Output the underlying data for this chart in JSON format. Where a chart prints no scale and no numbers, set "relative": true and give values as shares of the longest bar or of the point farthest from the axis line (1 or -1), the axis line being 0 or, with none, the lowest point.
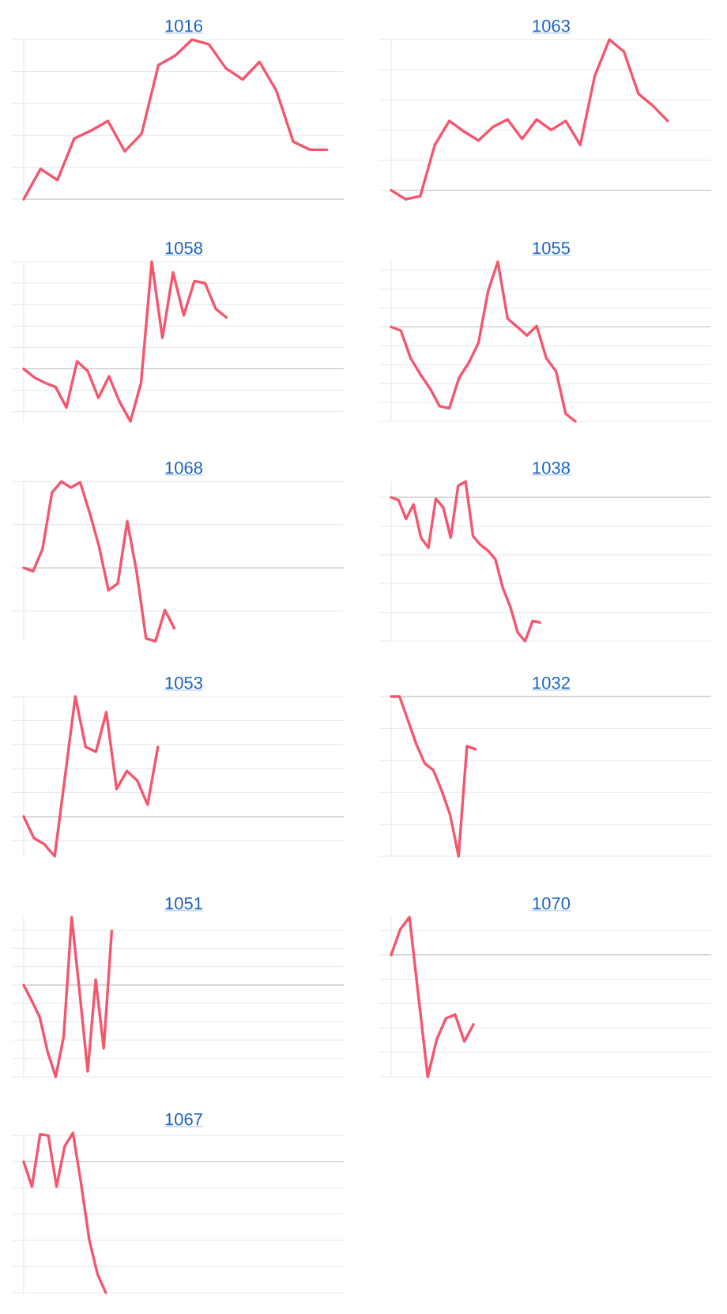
{
  "chart_data": [
    {
      "type": "line",
      "title": "1016",
      "relative": true,
      "grid": "y",
      "color": "#f4566e",
      "categories": [
        null,
        null,
        null,
        null,
        null,
        null,
        null,
        null,
        null,
        null,
        null,
        null,
        null,
        null,
        null,
        null,
        null,
        null,
        null,
        null
      ],
      "values": [
        0,
        0.19,
        0.12,
        0.38,
        0.43,
        0.49,
        0.3,
        0.41,
        0.84,
        0.9,
        1,
        0.97,
        0.82,
        0.75,
        0.86,
        0.68,
        0.36,
        0.31,
        0.31,
        null
      ]
    },
    {
      "type": "line",
      "title": "1063",
      "relative": true,
      "grid": "y",
      "color": "#f4566e",
      "categories": [
        null,
        null,
        null,
        null,
        null,
        null,
        null,
        null,
        null,
        null,
        null,
        null,
        null,
        null,
        null,
        null,
        null,
        null,
        null,
        null,
        null,
        null,
        null
      ],
      "values": [
        0,
        -0.06,
        -0.04,
        0.3,
        0.46,
        0.39,
        0.33,
        0.42,
        0.47,
        0.34,
        0.47,
        0.4,
        0.46,
        0.3,
        0.76,
        1,
        0.92,
        0.64,
        0.56,
        0.46,
        null,
        null,
        null
      ]
    },
    {
      "type": "line",
      "title": "1058",
      "relative": true,
      "grid": "y",
      "color": "#f4566e",
      "categories": [
        null,
        null,
        null,
        null,
        null,
        null,
        null,
        null,
        null,
        null,
        null,
        null,
        null,
        null,
        null,
        null,
        null,
        null,
        null,
        null,
        null,
        null,
        null,
        null,
        null,
        null,
        null,
        null,
        null,
        null,
        null
      ],
      "values": [
        0,
        -0.08,
        -0.13,
        -0.17,
        -0.36,
        0.07,
        -0.02,
        -0.27,
        -0.07,
        -0.31,
        -0.49,
        -0.13,
        1,
        0.29,
        0.9,
        0.5,
        0.82,
        0.8,
        0.56,
        0.48,
        null,
        null,
        null,
        null,
        null,
        null,
        null,
        null,
        null,
        null,
        null
      ]
    },
    {
      "type": "line",
      "title": "1055",
      "relative": true,
      "grid": "y",
      "color": "#f4566e",
      "categories": [
        null,
        null,
        null,
        null,
        null,
        null,
        null,
        null,
        null,
        null,
        null,
        null,
        null,
        null,
        null,
        null,
        null,
        null,
        null,
        null,
        null,
        null,
        null,
        null,
        null,
        null,
        null,
        null,
        null,
        null,
        null,
        null,
        null,
        null
      ],
      "values": [
        0,
        -0.04,
        -0.33,
        -0.5,
        -0.65,
        -0.84,
        -0.86,
        -0.54,
        -0.38,
        -0.17,
        0.38,
        0.69,
        0.09,
        0,
        -0.09,
        0.01,
        -0.33,
        -0.47,
        -0.92,
        -1,
        null,
        null,
        null,
        null,
        null,
        null,
        null,
        null,
        null,
        null,
        null,
        null,
        null,
        null
      ]
    },
    {
      "type": "line",
      "title": "1068",
      "relative": true,
      "grid": "y",
      "color": "#f4566e",
      "categories": [
        null,
        null,
        null,
        null,
        null,
        null,
        null,
        null,
        null,
        null,
        null,
        null,
        null,
        null,
        null,
        null,
        null,
        null,
        null,
        null,
        null,
        null,
        null,
        null,
        null,
        null,
        null,
        null,
        null,
        null,
        null,
        null,
        null,
        null,
        null
      ],
      "values": [
        0,
        -0.04,
        0.22,
        0.87,
        1,
        0.93,
        0.99,
        0.64,
        0.25,
        -0.26,
        -0.18,
        0.54,
        -0.05,
        -0.82,
        -0.85,
        -0.49,
        -0.7,
        null,
        null,
        null,
        null,
        null,
        null,
        null,
        null,
        null,
        null,
        null,
        null,
        null,
        null,
        null,
        null,
        null,
        null
      ]
    },
    {
      "type": "line",
      "title": "1038",
      "relative": true,
      "grid": "y",
      "color": "#f4566e",
      "categories": [
        null,
        null,
        null,
        null,
        null,
        null,
        null,
        null,
        null,
        null,
        null,
        null,
        null,
        null,
        null,
        null,
        null,
        null,
        null,
        null,
        null,
        null,
        null,
        null,
        null,
        null,
        null,
        null,
        null,
        null,
        null,
        null,
        null,
        null,
        null,
        null,
        null,
        null,
        null,
        null,
        null,
        null,
        null,
        null
      ],
      "values": [
        0,
        -0.02,
        -0.15,
        -0.05,
        -0.28,
        -0.35,
        -0.01,
        -0.07,
        -0.28,
        0.08,
        0.11,
        -0.27,
        -0.33,
        -0.37,
        -0.43,
        -0.63,
        -0.76,
        -0.94,
        -1,
        -0.86,
        -0.87,
        null,
        null,
        null,
        null,
        null,
        null,
        null,
        null,
        null,
        null,
        null,
        null,
        null,
        null,
        null,
        null,
        null,
        null,
        null,
        null,
        null,
        null,
        null
      ]
    },
    {
      "type": "line",
      "title": "1053",
      "relative": true,
      "grid": "y",
      "color": "#f4566e",
      "categories": [
        null,
        null,
        null,
        null,
        null,
        null,
        null,
        null,
        null,
        null,
        null,
        null,
        null,
        null,
        null,
        null,
        null,
        null,
        null,
        null,
        null,
        null,
        null,
        null,
        null,
        null,
        null,
        null,
        null,
        null,
        null,
        null
      ],
      "values": [
        0,
        -0.18,
        -0.23,
        -0.33,
        0.33,
        1,
        0.58,
        0.54,
        0.87,
        0.23,
        0.38,
        0.3,
        0.1,
        0.58,
        null,
        null,
        null,
        null,
        null,
        null,
        null,
        null,
        null,
        null,
        null,
        null,
        null,
        null,
        null,
        null,
        null,
        null
      ]
    },
    {
      "type": "line",
      "title": "1032",
      "relative": true,
      "grid": "y",
      "color": "#f4566e",
      "categories": [
        null,
        null,
        null,
        null,
        null,
        null,
        null,
        null,
        null,
        null,
        null,
        null,
        null,
        null,
        null,
        null,
        null,
        null,
        null,
        null,
        null,
        null,
        null,
        null,
        null,
        null,
        null,
        null,
        null,
        null,
        null,
        null,
        null,
        null,
        null,
        null,
        null,
        null,
        null
      ],
      "values": [
        0,
        0,
        -0.15,
        -0.3,
        -0.42,
        -0.46,
        -0.59,
        -0.74,
        -1,
        -0.31,
        -0.33,
        null,
        null,
        null,
        null,
        null,
        null,
        null,
        null,
        null,
        null,
        null,
        null,
        null,
        null,
        null,
        null,
        null,
        null,
        null,
        null,
        null,
        null,
        null,
        null,
        null,
        null,
        null,
        null
      ]
    },
    {
      "type": "line",
      "title": "1051",
      "relative": true,
      "grid": "y",
      "color": "#f4566e",
      "categories": [
        null,
        null,
        null,
        null,
        null,
        null,
        null,
        null,
        null,
        null,
        null,
        null,
        null,
        null,
        null,
        null,
        null,
        null,
        null,
        null,
        null,
        null,
        null,
        null,
        null,
        null,
        null,
        null,
        null,
        null,
        null,
        null,
        null,
        null,
        null,
        null,
        null,
        null,
        null,
        null,
        null
      ],
      "values": [
        0,
        -0.17,
        -0.35,
        -0.73,
        -1,
        -0.56,
        0.74,
        -0.09,
        -0.94,
        0.06,
        -0.69,
        0.59,
        null,
        null,
        null,
        null,
        null,
        null,
        null,
        null,
        null,
        null,
        null,
        null,
        null,
        null,
        null,
        null,
        null,
        null,
        null,
        null,
        null,
        null,
        null,
        null,
        null,
        null,
        null,
        null,
        null
      ]
    },
    {
      "type": "line",
      "title": "1070",
      "relative": true,
      "grid": "y",
      "color": "#f4566e",
      "categories": [
        null,
        null,
        null,
        null,
        null,
        null,
        null,
        null,
        null,
        null,
        null,
        null,
        null,
        null,
        null,
        null,
        null,
        null,
        null,
        null,
        null,
        null,
        null,
        null,
        null,
        null,
        null,
        null,
        null,
        null,
        null,
        null,
        null,
        null,
        null,
        null
      ],
      "values": [
        0,
        0.21,
        0.31,
        -0.35,
        -1,
        -0.69,
        -0.52,
        -0.49,
        -0.71,
        -0.57,
        null,
        null,
        null,
        null,
        null,
        null,
        null,
        null,
        null,
        null,
        null,
        null,
        null,
        null,
        null,
        null,
        null,
        null,
        null,
        null,
        null,
        null,
        null,
        null,
        null,
        null
      ]
    },
    {
      "type": "line",
      "title": "1067",
      "relative": true,
      "grid": "y",
      "color": "#f4566e",
      "categories": [
        null,
        null,
        null,
        null,
        null,
        null,
        null,
        null,
        null,
        null,
        null,
        null,
        null,
        null,
        null,
        null,
        null,
        null,
        null,
        null,
        null,
        null,
        null,
        null,
        null,
        null,
        null,
        null,
        null,
        null,
        null,
        null,
        null,
        null,
        null,
        null,
        null,
        null,
        null,
        null
      ],
      "values": [
        0,
        -0.19,
        0.21,
        0.2,
        -0.19,
        0.12,
        0.22,
        -0.17,
        -0.6,
        -0.86,
        -1,
        null,
        null,
        null,
        null,
        null,
        null,
        null,
        null,
        null,
        null,
        null,
        null,
        null,
        null,
        null,
        null,
        null,
        null,
        null,
        null,
        null,
        null,
        null,
        null,
        null,
        null,
        null,
        null,
        null
      ]
    }
  ]
}
